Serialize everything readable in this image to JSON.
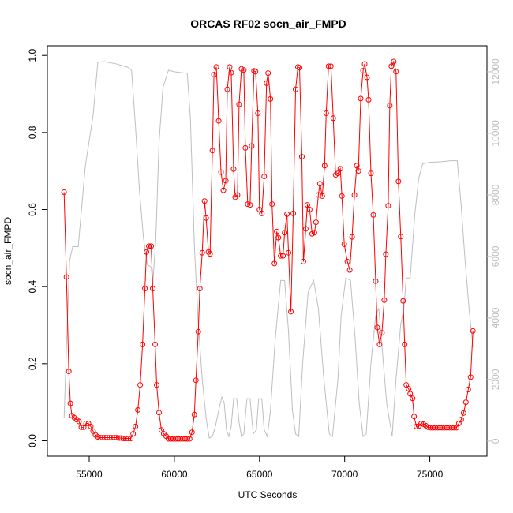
{
  "chart_data": {
    "type": "line",
    "title": "ORCAS RF02 socn_air_FMPD",
    "xlabel": "UTC Seconds",
    "ylabel": "socn_air_FMPD",
    "xlim": [
      52544,
      78356
    ],
    "xticks": [
      55000,
      60000,
      65000,
      70000,
      75000
    ],
    "ylim": [
      -0.04,
      1.025
    ],
    "yticks": [
      {
        "value": 0,
        "label": "0.0"
      },
      0.2,
      0.4,
      0.6,
      0.8,
      {
        "value": 1,
        "label": "1.0"
      }
    ],
    "y2lim": [
      -490,
      12845
    ],
    "y2ticks": [
      0,
      2000,
      4000,
      6000,
      8000,
      10000,
      12000
    ],
    "series": [
      {
        "color": "#ff0000",
        "markers": true,
        "x": [
          53525,
          53664,
          53802,
          53894,
          53986,
          54124,
          54263,
          54401,
          54539,
          54677,
          54816,
          54954,
          55092,
          55230,
          55369,
          55507,
          55645,
          55783,
          55922,
          56060,
          56198,
          56336,
          56475,
          56613,
          56751,
          56889,
          57028,
          57166,
          57304,
          57442,
          57580,
          57719,
          57857,
          57995,
          58134,
          58272,
          58364,
          58502,
          58640,
          58732,
          58871,
          58963,
          59101,
          59239,
          59378,
          59516,
          59654,
          59792,
          59931,
          60069,
          60207,
          60345,
          60484,
          60622,
          60760,
          60898,
          61036,
          61175,
          61267,
          61405,
          61497,
          61636,
          61774,
          61866,
          62004,
          62096,
          62235,
          62327,
          62465,
          62603,
          62741,
          62880,
          63018,
          63110,
          63248,
          63340,
          63479,
          63571,
          63709,
          63801,
          63940,
          64078,
          64170,
          64308,
          64446,
          64539,
          64677,
          64769,
          64907,
          64999,
          65138,
          65276,
          65414,
          65506,
          65644,
          65737,
          65875,
          66013,
          66105,
          66244,
          66382,
          66474,
          66612,
          66704,
          66843,
          66981,
          67119,
          67257,
          67350,
          67488,
          67580,
          67718,
          67810,
          67948,
          68087,
          68225,
          68317,
          68455,
          68548,
          68686,
          68824,
          68916,
          69054,
          69193,
          69331,
          69469,
          69607,
          69746,
          69838,
          69976,
          70160,
          70299,
          70437,
          70575,
          70714,
          70806,
          70944,
          71082,
          71174,
          71313,
          71405,
          71543,
          71681,
          71820,
          71912,
          72050,
          72188,
          72326,
          72418,
          72557,
          72649,
          72741,
          72879,
          73017,
          73156,
          73294,
          73432,
          73524,
          73616,
          73754,
          73847,
          73985,
          74077,
          74215,
          74354,
          74492,
          74630,
          74768,
          74907,
          75045,
          75183,
          75321,
          75460,
          75598,
          75736,
          75874,
          76013,
          76151,
          76289,
          76427,
          76566,
          76704,
          76842,
          76980,
          77119,
          77257,
          77395,
          77533
        ],
        "values": [
          0.645,
          0.425,
          0.18,
          0.097,
          0.065,
          0.06,
          0.055,
          0.05,
          0.035,
          0.035,
          0.045,
          0.045,
          0.037,
          0.025,
          0.015,
          0.01,
          0.008,
          0.008,
          0.008,
          0.008,
          0.008,
          0.008,
          0.008,
          0.008,
          0.007,
          0.007,
          0.006,
          0.006,
          0.006,
          0.006,
          0.018,
          0.037,
          0.08,
          0.145,
          0.25,
          0.395,
          0.49,
          0.505,
          0.505,
          0.395,
          0.25,
          0.145,
          0.073,
          0.028,
          0.018,
          0.012,
          0.005,
          0.005,
          0.005,
          0.005,
          0.005,
          0.005,
          0.005,
          0.005,
          0.005,
          0.005,
          0.022,
          0.068,
          0.157,
          0.283,
          0.395,
          0.488,
          0.622,
          0.578,
          0.49,
          0.485,
          0.753,
          0.95,
          0.97,
          0.83,
          0.697,
          0.65,
          0.675,
          0.912,
          0.97,
          0.955,
          0.705,
          0.632,
          0.638,
          0.873,
          0.965,
          0.962,
          0.76,
          0.614,
          0.612,
          0.765,
          0.96,
          0.958,
          0.85,
          0.6,
          0.59,
          0.686,
          0.928,
          0.954,
          0.887,
          0.614,
          0.46,
          0.543,
          0.527,
          0.48,
          0.48,
          0.54,
          0.588,
          0.488,
          0.335,
          0.59,
          0.912,
          0.97,
          0.968,
          0.737,
          0.465,
          0.55,
          0.612,
          0.6,
          0.537,
          0.54,
          0.567,
          0.638,
          0.667,
          0.635,
          0.714,
          0.85,
          0.972,
          0.972,
          0.837,
          0.69,
          0.694,
          0.706,
          0.635,
          0.51,
          0.465,
          0.443,
          0.529,
          0.638,
          0.714,
          0.7,
          0.888,
          0.96,
          0.978,
          0.943,
          0.885,
          0.694,
          0.586,
          0.414,
          0.294,
          0.25,
          0.28,
          0.365,
          0.484,
          0.61,
          0.87,
          0.972,
          0.984,
          0.958,
          0.673,
          0.53,
          0.363,
          0.25,
          0.145,
          0.135,
          0.122,
          0.11,
          0.063,
          0.037,
          0.038,
          0.045,
          0.043,
          0.039,
          0.035,
          0.034,
          0.034,
          0.034,
          0.034,
          0.034,
          0.034,
          0.034,
          0.034,
          0.034,
          0.034,
          0.034,
          0.034,
          0.045,
          0.055,
          0.072,
          0.1,
          0.133,
          0.165,
          0.285
        ]
      },
      {
        "color": "#bebebe",
        "markers": false,
        "axis": "y2",
        "x": [
          53525,
          53664,
          53848,
          54032,
          54355,
          54770,
          55230,
          55507,
          55876,
          56567,
          57258,
          57488,
          57719,
          57949,
          58180,
          58410,
          58640,
          58732,
          58917,
          59101,
          59332,
          59654,
          60023,
          60760,
          60944,
          61175,
          61405,
          61636,
          61866,
          62050,
          62235,
          62419,
          62603,
          62788,
          62926,
          63064,
          63202,
          63340,
          63479,
          63663,
          63801,
          63940,
          64078,
          64262,
          64446,
          64631,
          64815,
          64953,
          65138,
          65276,
          65460,
          65644,
          65921,
          66244,
          66474,
          66704,
          66935,
          67119,
          67303,
          67534,
          67856,
          68179,
          68455,
          68778,
          69100,
          69285,
          69607,
          69792,
          70068,
          70344,
          70621,
          70851,
          71082,
          71266,
          71543,
          71820,
          72004,
          72234,
          72464,
          72787,
          73017,
          73294,
          73478,
          73616,
          73847,
          74123,
          74354,
          74584,
          74999,
          75690,
          76243,
          76612,
          76842,
          77072,
          77303,
          77533
        ],
        "values": [
          740,
          3045,
          5860,
          6320,
          6320,
          8930,
          10590,
          12310,
          12330,
          12260,
          12150,
          12050,
          10210,
          8160,
          6630,
          5730,
          5655,
          5090,
          6630,
          9700,
          11490,
          12050,
          12000,
          11950,
          10470,
          6370,
          3810,
          2020,
          740,
          100,
          150,
          490,
          1000,
          1430,
          1250,
          360,
          150,
          490,
          1380,
          1380,
          615,
          150,
          230,
          1380,
          1380,
          230,
          360,
          1380,
          1380,
          360,
          150,
          1000,
          3300,
          5220,
          5220,
          3560,
          1000,
          230,
          150,
          2530,
          4840,
          5220,
          4320,
          2020,
          230,
          150,
          2020,
          4070,
          5300,
          5220,
          3300,
          1250,
          150,
          230,
          2530,
          4070,
          4320,
          2790,
          1250,
          150,
          2020,
          3810,
          4320,
          5300,
          5300,
          7390,
          8550,
          9010,
          9060,
          9080,
          9110,
          9110,
          7650,
          5860,
          4320,
          3045
        ]
      }
    ]
  }
}
